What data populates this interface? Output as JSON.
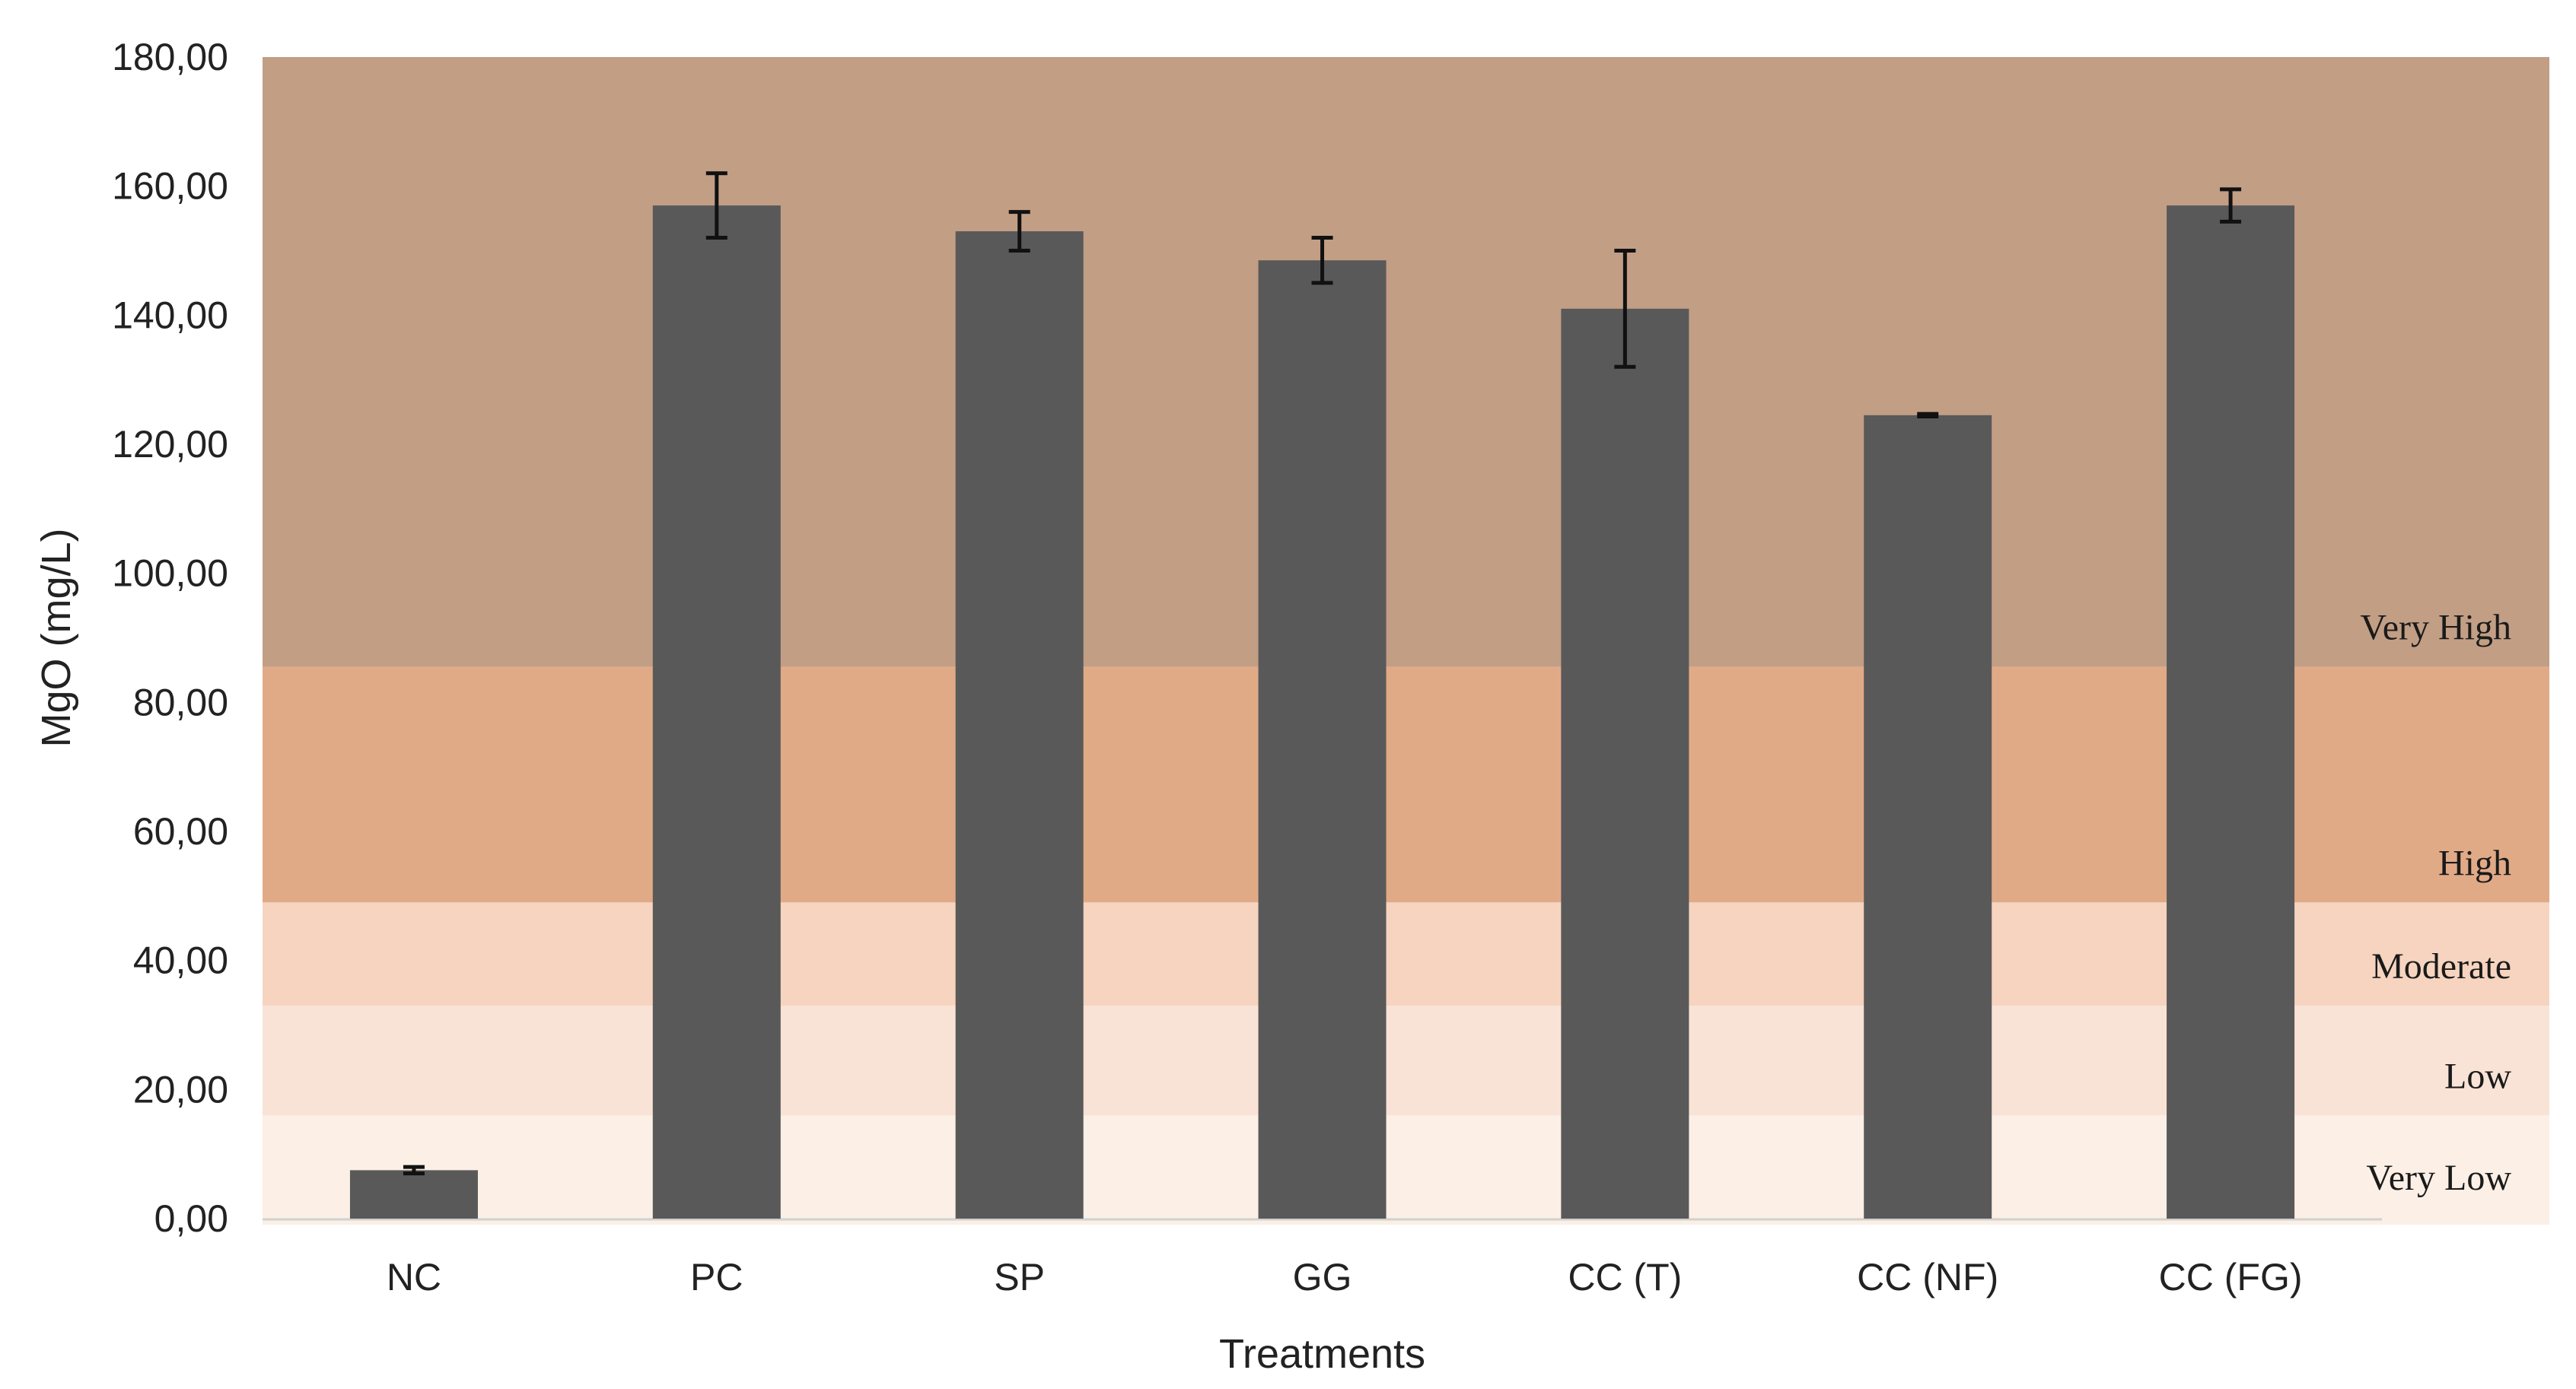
{
  "chart_data": {
    "type": "bar",
    "title": "",
    "xlabel": "Treatments",
    "ylabel": "MgO (mg/L)",
    "ylim": [
      0,
      180
    ],
    "yticks": [
      "0,00",
      "20,00",
      "40,00",
      "60,00",
      "80,00",
      "100,00",
      "120,00",
      "140,00",
      "160,00",
      "180,00"
    ],
    "categories": [
      "NC",
      "PC",
      "SP",
      "GG",
      "CC (T)",
      "CC (NF)",
      "CC (FG)"
    ],
    "values": [
      7.5,
      157,
      153,
      148.5,
      141,
      124.5,
      157
    ],
    "errors": [
      0.5,
      5,
      3,
      3.5,
      9,
      0.2,
      2.5
    ],
    "bar_color": "#595959",
    "grid": false,
    "legend": "none",
    "bands": [
      {
        "label": "Very Low",
        "from": 0,
        "to": 16,
        "color": "#fbefe6"
      },
      {
        "label": "Low",
        "from": 16,
        "to": 33,
        "color": "#f9e3d6"
      },
      {
        "label": "Moderate",
        "from": 33,
        "to": 49,
        "color": "#f6d4bf"
      },
      {
        "label": "High",
        "from": 49,
        "to": 85.5,
        "color": "#e1aa87"
      },
      {
        "label": "Very High",
        "from": 85.5,
        "to": 180,
        "color": "#c29e85"
      }
    ]
  }
}
